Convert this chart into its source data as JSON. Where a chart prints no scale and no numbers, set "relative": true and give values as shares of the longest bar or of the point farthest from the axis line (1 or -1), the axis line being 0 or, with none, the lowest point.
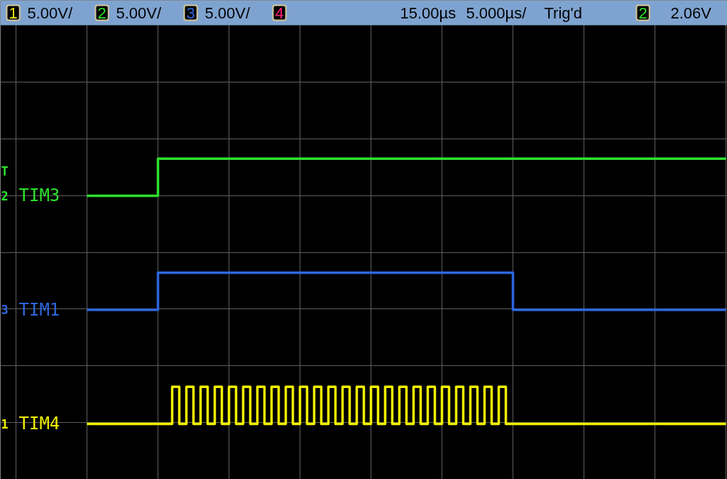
{
  "chart_data": {
    "type": "step",
    "relative": true,
    "grid": true,
    "tick_labels": false,
    "categories": [
      null,
      null,
      null,
      null,
      null,
      null,
      null,
      null,
      null,
      null,
      null,
      null,
      null,
      null,
      null,
      null,
      null,
      null,
      null,
      null,
      null,
      null,
      null,
      null,
      null,
      null,
      null,
      null,
      null,
      null,
      null,
      null,
      null,
      null,
      null,
      null,
      null,
      null,
      null,
      null,
      null,
      null,
      null,
      null,
      null,
      null,
      null,
      null,
      null,
      null,
      null,
      null,
      null,
      null,
      null,
      null,
      null,
      null,
      null,
      null,
      null,
      null,
      null,
      null,
      null,
      null,
      null,
      null,
      null,
      null,
      null,
      null,
      null,
      null,
      null,
      null,
      null,
      null,
      null,
      null,
      null,
      null,
      null,
      null,
      null,
      null,
      null,
      null,
      null,
      null,
      null,
      null,
      null,
      null,
      null,
      null,
      null,
      null,
      null,
      null,
      null
    ],
    "series": [
      {
        "name": "TIM4",
        "color": "#f0f000",
        "values": [
          null,
          null,
          null,
          null,
          null,
          null,
          null,
          null,
          null,
          null,
          0,
          0,
          0,
          0,
          0,
          0,
          0,
          0,
          0,
          0,
          0,
          0,
          0.14,
          0,
          0.14,
          0,
          0.14,
          0,
          0.14,
          0,
          0.14,
          0,
          0.14,
          0,
          0.14,
          0,
          0.14,
          0,
          0.14,
          0,
          0.14,
          0,
          0.14,
          0,
          0.14,
          0,
          0.14,
          0,
          0.14,
          0,
          0.14,
          0,
          0.14,
          0,
          0.14,
          0,
          0.14,
          0,
          0.14,
          0,
          0.14,
          0,
          0.14,
          0,
          0.14,
          0,
          0.14,
          0,
          0.14,
          0,
          0,
          0,
          0,
          0,
          0,
          0,
          0,
          0,
          0,
          0,
          0,
          0,
          0,
          0,
          0,
          0,
          0,
          0,
          0,
          0,
          0,
          0,
          0,
          0,
          0,
          0,
          0,
          0,
          0,
          0,
          0
        ]
      },
      {
        "name": "TIM3",
        "color": "#2ee02e",
        "values": [
          null,
          null,
          null,
          null,
          null,
          null,
          null,
          null,
          null,
          null,
          0.86,
          0.86,
          0.86,
          0.86,
          0.86,
          0.86,
          0.86,
          0.86,
          0.86,
          0.86,
          1,
          1,
          1,
          1,
          1,
          1,
          1,
          1,
          1,
          1,
          1,
          1,
          1,
          1,
          1,
          1,
          1,
          1,
          1,
          1,
          1,
          1,
          1,
          1,
          1,
          1,
          1,
          1,
          1,
          1,
          1,
          1,
          1,
          1,
          1,
          1,
          1,
          1,
          1,
          1,
          1,
          1,
          1,
          1,
          1,
          1,
          1,
          1,
          1,
          1,
          1,
          1,
          1,
          1,
          1,
          1,
          1,
          1,
          1,
          1,
          1,
          1,
          1,
          1,
          1,
          1,
          1,
          1,
          1,
          1,
          1,
          1,
          1,
          1,
          1,
          1,
          1,
          1,
          1,
          1,
          1
        ]
      },
      {
        "name": "TIM1",
        "color": "#2d66de",
        "values": [
          null,
          null,
          null,
          null,
          null,
          null,
          null,
          null,
          null,
          null,
          0.43,
          0.43,
          0.43,
          0.43,
          0.43,
          0.43,
          0.43,
          0.43,
          0.43,
          0.43,
          0.57,
          0.57,
          0.57,
          0.57,
          0.57,
          0.57,
          0.57,
          0.57,
          0.57,
          0.57,
          0.57,
          0.57,
          0.57,
          0.57,
          0.57,
          0.57,
          0.57,
          0.57,
          0.57,
          0.57,
          0.57,
          0.57,
          0.57,
          0.57,
          0.57,
          0.57,
          0.57,
          0.57,
          0.57,
          0.57,
          0.57,
          0.57,
          0.57,
          0.57,
          0.57,
          0.57,
          0.57,
          0.57,
          0.57,
          0.57,
          0.57,
          0.57,
          0.57,
          0.57,
          0.57,
          0.57,
          0.57,
          0.57,
          0.57,
          0.57,
          0.43,
          0.43,
          0.43,
          0.43,
          0.43,
          0.43,
          0.43,
          0.43,
          0.43,
          0.43,
          0.43,
          0.43,
          0.43,
          0.43,
          0.43,
          0.43,
          0.43,
          0.43,
          0.43,
          0.43,
          0.43,
          0.43,
          0.43,
          0.43,
          0.43,
          0.43,
          0.43,
          0.43,
          0.43,
          0.43,
          0.43
        ]
      }
    ],
    "annotations": [
      "1",
      "5.00V/",
      "2",
      "5.00V/",
      "3",
      "5.00V/",
      "4",
      "15.00µs",
      "5.000µs/",
      "Trig'd",
      "2",
      "2.06V",
      "T",
      "2",
      "3",
      "1"
    ]
  }
}
